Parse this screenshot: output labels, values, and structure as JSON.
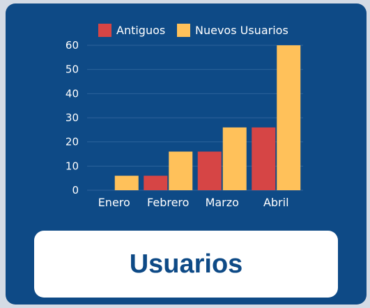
{
  "card_label": "Usuarios",
  "colors": {
    "background": "#0e4a86",
    "antiguos": "#d64545",
    "nuevos": "#ffc15a",
    "text": "#ffffff",
    "grid": "#2d639a"
  },
  "chart_data": {
    "type": "bar",
    "categories": [
      "Enero",
      "Febrero",
      "Marzo",
      "Abril"
    ],
    "series": [
      {
        "name": "Antiguos",
        "values": [
          0,
          6,
          16,
          26
        ]
      },
      {
        "name": "Nuevos Usuarios",
        "values": [
          6,
          16,
          26,
          60
        ]
      }
    ],
    "y_ticks": [
      "0",
      "10",
      "20",
      "30",
      "40",
      "50",
      "60"
    ],
    "ylim": [
      0,
      60
    ],
    "legend_position": "top-center",
    "grid": true
  }
}
